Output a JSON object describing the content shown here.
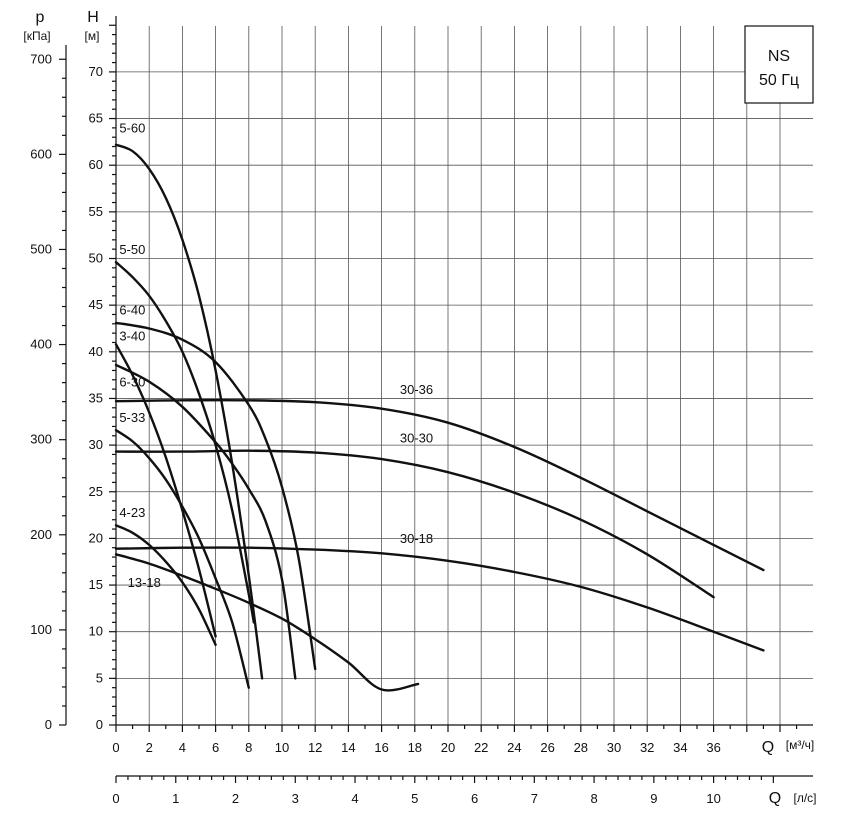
{
  "chart_data": {
    "type": "line",
    "badge": {
      "title": "NS",
      "subtitle": "50 Гц"
    },
    "left_axis": {
      "symbol": "p",
      "unit": "[кПа]",
      "ticks": [
        0,
        100,
        200,
        300,
        400,
        500,
        600,
        700
      ]
    },
    "head_axis": {
      "symbol": "H",
      "unit": "[м]",
      "ticks": [
        0,
        5,
        10,
        15,
        20,
        25,
        30,
        35,
        40,
        45,
        50,
        55,
        60,
        65,
        70
      ],
      "ylim": [
        0,
        75
      ]
    },
    "x_axis_flow": {
      "symbol": "Q",
      "unit": "[м³/ч]",
      "ticks": [
        0,
        2,
        4,
        6,
        8,
        10,
        12,
        14,
        16,
        18,
        20,
        22,
        24,
        26,
        28,
        30,
        32,
        34,
        36
      ],
      "xlim": [
        0,
        41
      ]
    },
    "x_axis_litres": {
      "symbol": "Q",
      "unit": "[л/с]",
      "ticks": [
        0,
        1,
        2,
        3,
        4,
        5,
        6,
        7,
        8,
        9,
        10
      ]
    },
    "series": [
      {
        "name": "5-60",
        "points": [
          [
            0,
            62.2
          ],
          [
            1,
            61.5
          ],
          [
            2,
            59.6
          ],
          [
            3,
            56.5
          ],
          [
            4,
            52
          ],
          [
            5,
            46
          ],
          [
            6,
            38
          ],
          [
            7,
            28
          ],
          [
            8,
            16
          ],
          [
            8.8,
            5
          ]
        ]
      },
      {
        "name": "5-50",
        "points": [
          [
            0,
            49.6
          ],
          [
            1,
            48
          ],
          [
            2,
            46
          ],
          [
            3,
            43.3
          ],
          [
            4,
            40
          ],
          [
            5,
            35.5
          ],
          [
            6,
            30
          ],
          [
            7,
            23
          ],
          [
            8,
            14
          ],
          [
            8.3,
            11
          ]
        ]
      },
      {
        "name": "6-40",
        "points": [
          [
            0,
            43.1
          ],
          [
            2,
            42.5
          ],
          [
            4,
            41.3
          ],
          [
            6,
            38.9
          ],
          [
            8,
            34.3
          ],
          [
            9,
            30.7
          ],
          [
            10,
            25.5
          ],
          [
            11,
            17.9
          ],
          [
            12,
            6
          ]
        ]
      },
      {
        "name": "3-40",
        "points": [
          [
            0,
            40.8
          ],
          [
            1,
            37.5
          ],
          [
            2,
            33.5
          ],
          [
            3,
            28.7
          ],
          [
            4,
            23
          ],
          [
            5,
            16.7
          ],
          [
            6,
            9.5
          ]
        ]
      },
      {
        "name": "6-30",
        "points": [
          [
            0,
            38.6
          ],
          [
            2,
            36.8
          ],
          [
            4,
            34.1
          ],
          [
            6,
            30.3
          ],
          [
            7,
            28
          ],
          [
            8,
            25.3
          ],
          [
            9,
            21.9
          ],
          [
            10,
            15.6
          ],
          [
            10.8,
            5
          ]
        ]
      },
      {
        "name": "5-33",
        "points": [
          [
            0,
            31.6
          ],
          [
            1,
            30.4
          ],
          [
            2,
            28.6
          ],
          [
            3,
            26.3
          ],
          [
            4,
            23.4
          ],
          [
            5,
            20
          ],
          [
            6,
            15.7
          ],
          [
            7,
            11
          ],
          [
            8,
            4
          ]
        ]
      },
      {
        "name": "4-23",
        "points": [
          [
            0,
            21.4
          ],
          [
            1,
            20.6
          ],
          [
            2,
            19.3
          ],
          [
            3,
            17.5
          ],
          [
            4,
            15.3
          ],
          [
            5,
            12.4
          ],
          [
            6,
            8.6
          ]
        ]
      },
      {
        "name": "13-18",
        "points": [
          [
            0,
            18.3
          ],
          [
            2,
            17.3
          ],
          [
            4,
            16
          ],
          [
            6,
            14.6
          ],
          [
            8,
            13.1
          ],
          [
            10,
            11.4
          ],
          [
            12,
            9.2
          ],
          [
            14,
            6.7
          ],
          [
            16,
            3.8
          ],
          [
            18.2,
            4.4
          ]
        ]
      },
      {
        "name": "30-36",
        "points": [
          [
            0,
            34.7
          ],
          [
            4,
            34.8
          ],
          [
            8,
            34.8
          ],
          [
            12,
            34.6
          ],
          [
            16,
            33.9
          ],
          [
            20,
            32.4
          ],
          [
            24,
            29.8
          ],
          [
            28,
            26.5
          ],
          [
            32,
            22.9
          ],
          [
            36,
            19.3
          ],
          [
            39,
            16.6
          ]
        ]
      },
      {
        "name": "30-30",
        "points": [
          [
            0,
            29.3
          ],
          [
            4,
            29.3
          ],
          [
            8,
            29.4
          ],
          [
            12,
            29.2
          ],
          [
            16,
            28.5
          ],
          [
            20,
            27.1
          ],
          [
            24,
            24.9
          ],
          [
            28,
            22
          ],
          [
            32,
            18.3
          ],
          [
            36,
            13.7
          ]
        ]
      },
      {
        "name": "30-18",
        "points": [
          [
            0,
            18.9
          ],
          [
            4,
            19
          ],
          [
            8,
            19
          ],
          [
            12,
            18.8
          ],
          [
            16,
            18.4
          ],
          [
            20,
            17.6
          ],
          [
            24,
            16.4
          ],
          [
            28,
            14.8
          ],
          [
            32,
            12.6
          ],
          [
            36,
            10
          ],
          [
            39,
            8
          ]
        ]
      }
    ],
    "curve_labels": [
      {
        "name": "5-60",
        "at": [
          0.2,
          63.5
        ]
      },
      {
        "name": "5-50",
        "at": [
          0.2,
          50.5
        ]
      },
      {
        "name": "6-40",
        "at": [
          0.2,
          44
        ]
      },
      {
        "name": "3-40",
        "at": [
          0.2,
          41.2
        ]
      },
      {
        "name": "6-30",
        "at": [
          0.2,
          36.3
        ]
      },
      {
        "name": "5-33",
        "at": [
          0.2,
          32.5
        ]
      },
      {
        "name": "4-23",
        "at": [
          0.2,
          22.3
        ]
      },
      {
        "name": "13-18",
        "at": [
          0.7,
          14.8
        ]
      },
      {
        "name": "30-36",
        "at": [
          17.1,
          35.5
        ]
      },
      {
        "name": "30-30",
        "at": [
          17.1,
          30.3
        ]
      },
      {
        "name": "30-18",
        "at": [
          17.1,
          19.5
        ]
      }
    ]
  }
}
